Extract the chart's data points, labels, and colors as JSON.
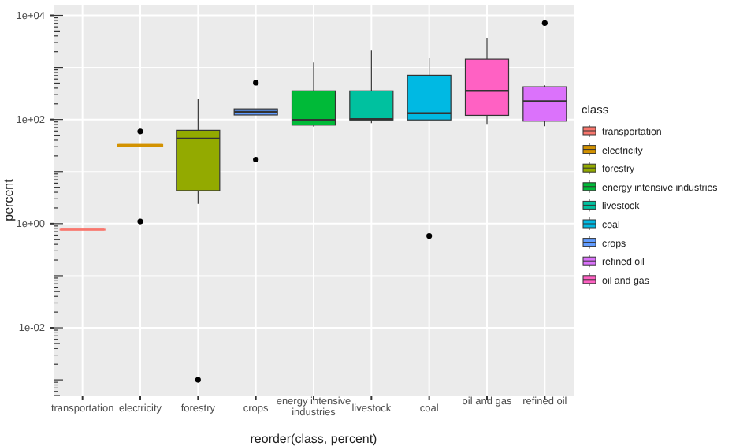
{
  "chart_data": {
    "type": "box",
    "xlabel": "reorder(class, percent)",
    "ylabel": "percent",
    "legend_title": "class",
    "legend": "right",
    "grid": true,
    "log": "y",
    "categories": [
      "transportation",
      "electricity",
      "forestry",
      "crops",
      "energy intensive industries",
      "livestock",
      "coal",
      "oil and gas",
      "refined oil"
    ],
    "ylim": [
      0.0005,
      16000
    ],
    "yticks": [
      {
        "value": 0.01,
        "label": "1e-02"
      },
      {
        "value": 1,
        "label": "1e+00"
      },
      {
        "value": 100,
        "label": "1e+02"
      },
      {
        "value": 10000,
        "label": "1e+04"
      }
    ],
    "series": [
      {
        "name": "transportation",
        "color": "#F8766D",
        "boxes": [
          {
            "low": 0.78,
            "q1": 0.78,
            "median": 0.78,
            "q3": 0.78,
            "high": 0.78
          },
          null,
          null,
          null,
          null,
          null,
          null,
          null,
          null
        ]
      },
      {
        "name": "electricity",
        "color": "#D39200",
        "boxes": [
          null,
          {
            "low": 32,
            "q1": 32,
            "median": 32,
            "q3": 32,
            "high": 32,
            "outliers": [
              59,
              1.1
            ]
          },
          null,
          null,
          null,
          null,
          null,
          null,
          null
        ]
      },
      {
        "name": "forestry",
        "color": "#93AA00",
        "boxes": [
          null,
          null,
          {
            "low": 2.4,
            "q1": 4.3,
            "median": 43,
            "q3": 62,
            "high": 245,
            "outliers": [
              0.001
            ]
          },
          null,
          null,
          null,
          null,
          null,
          null
        ]
      },
      {
        "name": "energy intensive industries",
        "color": "#00BA38",
        "boxes": [
          null,
          null,
          null,
          null,
          {
            "low": 73,
            "q1": 78,
            "median": 98,
            "q3": 355,
            "high": 1250
          },
          null,
          null,
          null,
          null
        ]
      },
      {
        "name": "livestock",
        "color": "#00C19F",
        "boxes": [
          null,
          null,
          null,
          null,
          null,
          {
            "low": 85,
            "q1": 98,
            "median": 102,
            "q3": 355,
            "high": 2100
          },
          null,
          null,
          null
        ]
      },
      {
        "name": "coal",
        "color": "#00B9E3",
        "boxes": [
          null,
          null,
          null,
          null,
          null,
          null,
          {
            "low": 98,
            "q1": 98,
            "median": 132,
            "q3": 710,
            "high": 1500,
            "outliers": [
              0.58
            ]
          },
          null,
          null
        ]
      },
      {
        "name": "crops",
        "color": "#619CFF",
        "boxes": [
          null,
          null,
          null,
          {
            "low": 122,
            "q1": 122,
            "median": 140,
            "q3": 160,
            "high": 160,
            "outliers": [
              510,
              17
            ]
          },
          null,
          null,
          null,
          null,
          null
        ]
      },
      {
        "name": "refined oil",
        "color": "#DB72FB",
        "boxes": [
          null,
          null,
          null,
          null,
          null,
          null,
          null,
          null,
          {
            "low": 74,
            "q1": 93,
            "median": 225,
            "q3": 425,
            "high": 455,
            "outliers": [
              7100
            ]
          }
        ]
      },
      {
        "name": "oil and gas",
        "color": "#FF61C3",
        "boxes": [
          null,
          null,
          null,
          null,
          null,
          null,
          null,
          {
            "low": 82,
            "q1": 120,
            "median": 355,
            "q3": 1440,
            "high": 3700
          },
          null
        ]
      }
    ]
  }
}
